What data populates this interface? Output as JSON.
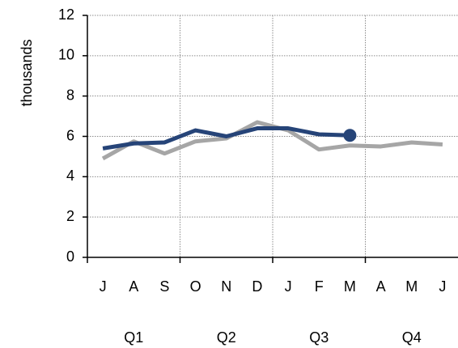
{
  "chart_data": {
    "type": "line",
    "y_label": "thousands",
    "categories": [
      "J",
      "A",
      "S",
      "O",
      "N",
      "D",
      "J",
      "F",
      "M",
      "A",
      "M",
      "J"
    ],
    "groups": [
      "Q1",
      "Q2",
      "Q3",
      "Q4"
    ],
    "series": [
      {
        "color": "#a6a6a6",
        "values": [
          4.9,
          5.75,
          5.15,
          5.75,
          5.9,
          6.7,
          6.3,
          5.35,
          5.55,
          5.5,
          5.7,
          5.6
        ]
      },
      {
        "color": "#264478",
        "values": [
          5.4,
          5.65,
          5.7,
          6.3,
          6.0,
          6.4,
          6.4,
          6.1,
          6.05,
          null,
          null,
          null
        ],
        "marker": "last"
      }
    ],
    "ylim": [
      0,
      12
    ],
    "yticks": [
      0,
      2,
      4,
      6,
      8,
      10,
      12
    ],
    "grid": true
  }
}
